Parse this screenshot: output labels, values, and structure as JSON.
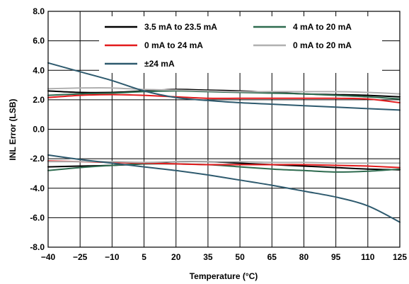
{
  "chart_data": {
    "type": "line",
    "title": "",
    "xlabel": "Temperature (°C)",
    "ylabel": "INL Error (LSB)",
    "xlim": [
      -40,
      125
    ],
    "ylim": [
      -8,
      8
    ],
    "x_ticks": [
      "−40",
      "−25",
      "−10",
      "5",
      "20",
      "35",
      "50",
      "65",
      "80",
      "95",
      "110",
      "125"
    ],
    "y_ticks": [
      "8.0",
      "6.0",
      "4.0",
      "2.0",
      "0.0",
      "-2.0",
      "-4.0",
      "-6.0",
      "-8.0"
    ],
    "grid": true,
    "legend_position": "top",
    "x": [
      -40,
      -25,
      -10,
      5,
      20,
      35,
      50,
      65,
      80,
      95,
      110,
      125
    ],
    "series": [
      {
        "name": "3.5 mA to 23.5 mA",
        "color": "#000000",
        "curves": [
          [
            2.6,
            2.5,
            2.5,
            2.6,
            2.7,
            2.65,
            2.6,
            2.5,
            2.4,
            2.35,
            2.3,
            2.2
          ],
          [
            -2.55,
            -2.5,
            -2.45,
            -2.35,
            -2.2,
            -2.2,
            -2.3,
            -2.4,
            -2.5,
            -2.6,
            -2.7,
            -2.75
          ]
        ]
      },
      {
        "name": "4 mA to 20 mA",
        "color": "#2e6b4f",
        "curves": [
          [
            2.3,
            2.4,
            2.45,
            2.55,
            2.6,
            2.55,
            2.5,
            2.45,
            2.4,
            2.3,
            2.2,
            2.05
          ],
          [
            -2.8,
            -2.6,
            -2.45,
            -2.35,
            -2.35,
            -2.4,
            -2.55,
            -2.7,
            -2.8,
            -2.9,
            -2.85,
            -2.7
          ]
        ]
      },
      {
        "name": "0 mA to 24 mA",
        "color": "#e31a1c",
        "curves": [
          [
            2.15,
            2.3,
            2.35,
            2.3,
            2.2,
            2.1,
            2.1,
            2.1,
            2.1,
            2.1,
            2.05,
            1.8
          ],
          [
            -2.15,
            -2.2,
            -2.25,
            -2.3,
            -2.35,
            -2.4,
            -2.4,
            -2.4,
            -2.4,
            -2.45,
            -2.5,
            -2.6
          ]
        ]
      },
      {
        "name": "0 mA to 20 mA",
        "color": "#b0b0b0",
        "curves": [
          [
            2.75,
            2.8,
            2.8,
            2.7,
            2.65,
            2.6,
            2.55,
            2.55,
            2.55,
            2.55,
            2.5,
            2.4
          ],
          [
            -2.2,
            -2.2,
            -2.2,
            -2.25,
            -2.2,
            -2.2,
            -2.2,
            -2.25,
            -2.25,
            -2.3,
            -2.3,
            -2.3
          ]
        ]
      },
      {
        "name": "±24 mA",
        "color": "#2e5a6e",
        "curves": [
          [
            4.5,
            3.9,
            3.3,
            2.6,
            2.15,
            1.95,
            1.8,
            1.7,
            1.6,
            1.5,
            1.4,
            1.3
          ],
          [
            -1.75,
            -2.05,
            -2.3,
            -2.55,
            -2.8,
            -3.1,
            -3.45,
            -3.8,
            -4.2,
            -4.6,
            -5.2,
            -6.3
          ]
        ]
      }
    ]
  }
}
